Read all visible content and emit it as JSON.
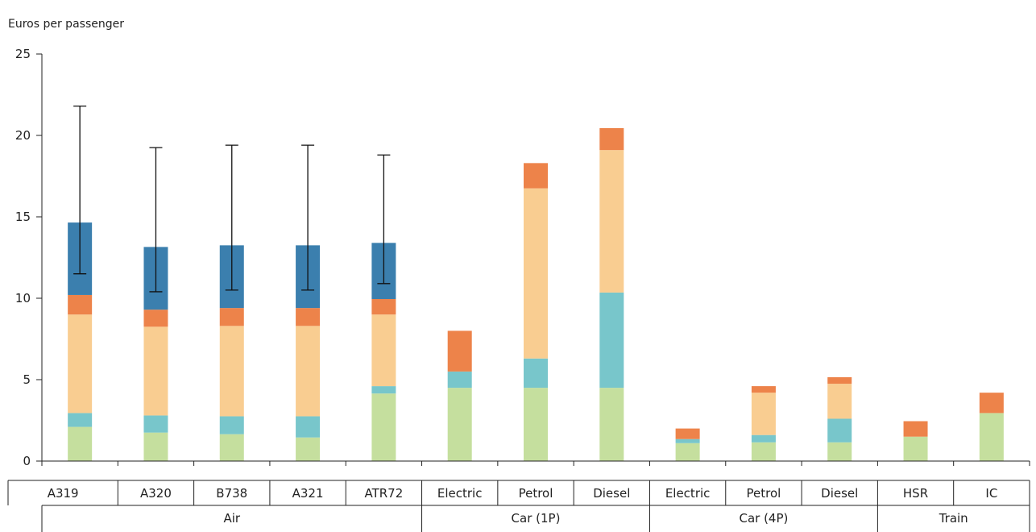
{
  "chart_data": {
    "type": "bar",
    "stacked": true,
    "ylabel": "Euros per passenger",
    "ylim": [
      0,
      25
    ],
    "yticks": [
      0,
      5,
      10,
      15,
      20,
      25
    ],
    "grid": false,
    "legend": "none",
    "colors": [
      "#c5df9e",
      "#78c6cb",
      "#f9cd91",
      "#ed834a",
      "#3b7fae"
    ],
    "categories": [
      "A319",
      "A320",
      "B738",
      "A321",
      "ATR72",
      "Electric",
      "Petrol",
      "Diesel",
      "Electric",
      "Petrol",
      "Diesel",
      "HSR",
      "IC"
    ],
    "groups": [
      {
        "label": "Air",
        "count": 5
      },
      {
        "label": "Car (1P)",
        "count": 3
      },
      {
        "label": "Car (4P)",
        "count": 3
      },
      {
        "label": "Train",
        "count": 2
      }
    ],
    "series": [
      {
        "values": [
          2.1,
          1.75,
          1.65,
          1.45,
          4.15,
          4.5,
          4.5,
          4.5,
          1.1,
          1.15,
          1.15,
          1.5,
          2.95
        ]
      },
      {
        "values": [
          0.85,
          1.05,
          1.1,
          1.3,
          0.45,
          1.0,
          1.8,
          5.85,
          0.25,
          0.45,
          1.45,
          0,
          0
        ]
      },
      {
        "values": [
          6.05,
          5.45,
          5.55,
          5.55,
          4.4,
          0,
          10.45,
          8.75,
          0,
          2.6,
          2.15,
          0,
          0
        ]
      },
      {
        "values": [
          1.2,
          1.05,
          1.1,
          1.1,
          0.95,
          2.5,
          1.55,
          1.35,
          0.65,
          0.4,
          0.4,
          0.95,
          1.25
        ]
      },
      {
        "values": [
          4.45,
          3.85,
          3.85,
          3.85,
          3.45,
          0,
          0,
          0,
          0,
          0,
          0,
          0,
          0
        ]
      }
    ],
    "error_bars": [
      {
        "index": 0,
        "low": 11.5,
        "high": 21.8
      },
      {
        "index": 1,
        "low": 10.4,
        "high": 19.25
      },
      {
        "index": 2,
        "low": 10.5,
        "high": 19.4
      },
      {
        "index": 3,
        "low": 10.5,
        "high": 19.4
      },
      {
        "index": 4,
        "low": 10.9,
        "high": 18.8
      }
    ]
  }
}
